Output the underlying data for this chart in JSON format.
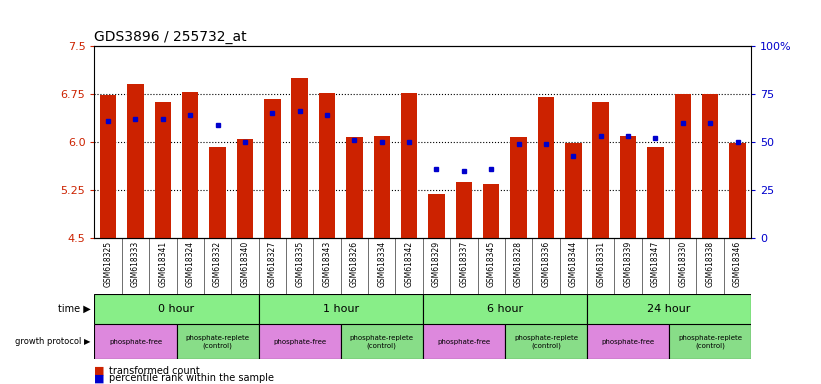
{
  "title": "GDS3896 / 255732_at",
  "samples": [
    "GSM618325",
    "GSM618333",
    "GSM618341",
    "GSM618324",
    "GSM618332",
    "GSM618340",
    "GSM618327",
    "GSM618335",
    "GSM618343",
    "GSM618326",
    "GSM618334",
    "GSM618342",
    "GSM618329",
    "GSM618337",
    "GSM618345",
    "GSM618328",
    "GSM618336",
    "GSM618344",
    "GSM618331",
    "GSM618339",
    "GSM618347",
    "GSM618330",
    "GSM618338",
    "GSM618346"
  ],
  "transformed_count": [
    6.73,
    6.9,
    6.63,
    6.78,
    5.93,
    6.05,
    6.67,
    7.0,
    6.77,
    6.08,
    6.1,
    6.77,
    5.19,
    5.37,
    5.35,
    6.08,
    6.7,
    5.98,
    6.62,
    6.1,
    5.92,
    6.75,
    6.75,
    5.98
  ],
  "percentile_rank": [
    61,
    62,
    62,
    64,
    59,
    50,
    65,
    66,
    64,
    51,
    50,
    50,
    36,
    35,
    36,
    49,
    49,
    43,
    53,
    53,
    52,
    60,
    60,
    50
  ],
  "ymin": 4.5,
  "ymax": 7.5,
  "yticks": [
    4.5,
    5.25,
    6.0,
    6.75,
    7.5
  ],
  "right_yticks": [
    0,
    25,
    50,
    75,
    100
  ],
  "right_ytick_labels": [
    "0",
    "25",
    "50",
    "75",
    "100%"
  ],
  "time_groups": [
    {
      "label": "0 hour",
      "start": 0,
      "end": 6
    },
    {
      "label": "1 hour",
      "start": 6,
      "end": 12
    },
    {
      "label": "6 hour",
      "start": 12,
      "end": 18
    },
    {
      "label": "24 hour",
      "start": 18,
      "end": 24
    }
  ],
  "protocol_groups": [
    {
      "label": "phosphate-free",
      "start": 0,
      "end": 3,
      "color": "#dd88dd"
    },
    {
      "label": "phosphate-replete\n(control)",
      "start": 3,
      "end": 6,
      "color": "#88dd88"
    },
    {
      "label": "phosphate-free",
      "start": 6,
      "end": 9,
      "color": "#dd88dd"
    },
    {
      "label": "phosphate-replete\n(control)",
      "start": 9,
      "end": 12,
      "color": "#88dd88"
    },
    {
      "label": "phosphate-free",
      "start": 12,
      "end": 15,
      "color": "#dd88dd"
    },
    {
      "label": "phosphate-replete\n(control)",
      "start": 15,
      "end": 18,
      "color": "#88dd88"
    },
    {
      "label": "phosphate-free",
      "start": 18,
      "end": 21,
      "color": "#dd88dd"
    },
    {
      "label": "phosphate-replete\n(control)",
      "start": 21,
      "end": 24,
      "color": "#88dd88"
    }
  ],
  "bar_color": "#cc2200",
  "dot_color": "#0000cc",
  "bg_color": "#ffffff",
  "plot_bg": "#ffffff",
  "left_label_color": "#cc2200",
  "right_label_color": "#0000cc",
  "grid_color": "#000000",
  "time_row_color": "#88ee88",
  "sample_bg_color": "#cccccc",
  "left_side_labels": [
    "time",
    "growth protocol"
  ],
  "legend": [
    {
      "color": "#cc2200",
      "label": "transformed count"
    },
    {
      "color": "#0000cc",
      "label": "percentile rank within the sample"
    }
  ]
}
